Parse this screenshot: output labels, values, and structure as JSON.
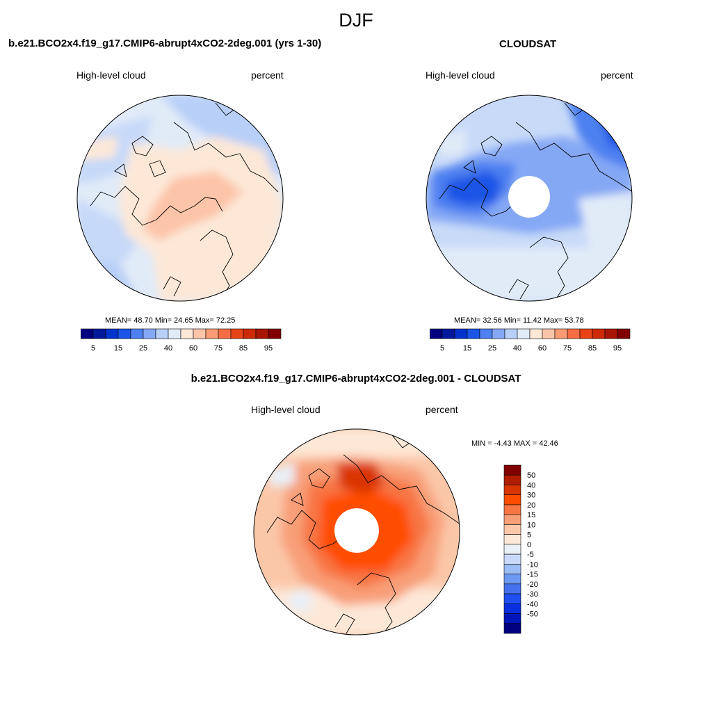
{
  "figure": {
    "title": "DJF"
  },
  "panels": [
    {
      "title": "b.e21.BCO2x4.f19_g17.CMIP6-abrupt4xCO2-2deg.001 (yrs 1-30)",
      "left_label": "High-level cloud",
      "right_label": "percent",
      "stats": "MEAN=  48.70  Min=  24.65  Max=  72.25"
    },
    {
      "title": "CLOUDSAT",
      "left_label": "High-level cloud",
      "right_label": "percent",
      "stats": "MEAN=  32.56  Min=  11.42  Max=  53.78"
    },
    {
      "title": "b.e21.BCO2x4.f19_g17.CMIP6-abrupt4xCO2-2deg.001 - CLOUDSAT",
      "left_label": "High-level cloud",
      "right_label": "percent",
      "stats": "MIN =  -4.43 MAX =  42.46"
    }
  ],
  "colorbars": {
    "horizontal": {
      "colors": [
        "#00007f",
        "#00199a",
        "#0033cc",
        "#1a55e6",
        "#4d80f0",
        "#85a8f5",
        "#b8cff8",
        "#e1ebf8",
        "#fde8d8",
        "#fcc4a8",
        "#fa9b74",
        "#f56d44",
        "#e84418",
        "#cc2a05",
        "#a81602",
        "#800000"
      ],
      "labels": [
        "5",
        "15",
        "25",
        "40",
        "60",
        "75",
        "85",
        "95"
      ]
    },
    "vertical": {
      "colors": [
        "#800000",
        "#b01d00",
        "#d93500",
        "#ff4d00",
        "#f87644",
        "#f89f78",
        "#fbc7a9",
        "#fde8d8",
        "#e9f0f8",
        "#c8daf8",
        "#9dbdf6",
        "#6e99f2",
        "#4372ec",
        "#1f4ff0",
        "#0a2fe0",
        "#0016b8",
        "#000080"
      ],
      "labels": [
        "50",
        "40",
        "30",
        "20",
        "15",
        "10",
        "5",
        "0",
        "-5",
        "-10",
        "-15",
        "-20",
        "-30",
        "-40",
        "-50"
      ]
    }
  },
  "colors": {
    "coast": "#000000",
    "hole": "#ffffff",
    "outline": "#000000"
  }
}
